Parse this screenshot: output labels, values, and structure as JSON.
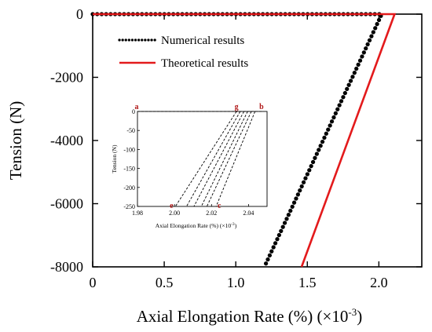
{
  "chart_data": {
    "type": "line",
    "title": "",
    "xlabel": "Axial Elongation Rate (%)",
    "xlabel_unit": "(×10",
    "xlabel_unit_exp": "-3",
    "xlabel_unit_close": ")",
    "ylabel": "Tension (N)",
    "xlim": [
      0,
      2.3
    ],
    "ylim": [
      -8000,
      0
    ],
    "xticks": [
      "0",
      "0.5",
      "1.0",
      "1.5",
      "2.0"
    ],
    "xtick_values": [
      0,
      0.5,
      1.0,
      1.5,
      2.0
    ],
    "yticks": [
      "0",
      "-2000",
      "-4000",
      "-6000",
      "-8000"
    ],
    "ytick_values": [
      0,
      -2000,
      -4000,
      -6000,
      -8000
    ],
    "legend_position": "top-left",
    "series": [
      {
        "name": "Numerical results",
        "style": "dotted",
        "color": "#000000",
        "x": [
          0,
          2.02,
          1.2
        ],
        "y": [
          0,
          0,
          -8000
        ]
      },
      {
        "name": "Theoretical results",
        "style": "solid",
        "color": "#e31a1c",
        "x": [
          0,
          2.11,
          1.46
        ],
        "y": [
          0,
          0,
          -8000
        ]
      }
    ],
    "inset": {
      "xlabel": "Axial Elongation Rate (%)",
      "xlabel_unit": "(×10",
      "xlabel_unit_exp": "-3",
      "xlabel_unit_close": ")",
      "ylabel": "Tension (N)",
      "xlim": [
        1.98,
        2.05
      ],
      "ylim": [
        -250,
        0
      ],
      "xticks": [
        "1.98",
        "2.00",
        "2.02",
        "2.04"
      ],
      "xtick_values": [
        1.98,
        2.0,
        2.02,
        2.04
      ],
      "yticks": [
        "0",
        "-50",
        "-100",
        "-150",
        "-200",
        "-250"
      ],
      "ytick_values": [
        0,
        -50,
        -100,
        -150,
        -200,
        -250
      ],
      "top_line": {
        "x": [
          1.98,
          2.047
        ],
        "y": [
          0,
          0
        ]
      },
      "dashed_lines": [
        {
          "x": [
            2.0335,
            2.0005
          ],
          "y": [
            0,
            -250
          ]
        },
        {
          "x": [
            2.0355,
            2.0065
          ],
          "y": [
            0,
            -250
          ]
        },
        {
          "x": [
            2.0375,
            2.0105
          ],
          "y": [
            0,
            -250
          ]
        },
        {
          "x": [
            2.0395,
            2.0145
          ],
          "y": [
            0,
            -250
          ]
        },
        {
          "x": [
            2.0415,
            2.0175
          ],
          "y": [
            0,
            -250
          ]
        },
        {
          "x": [
            2.0435,
            2.0225
          ],
          "y": [
            0,
            -250
          ]
        }
      ],
      "labels": [
        {
          "text": "a",
          "x": 1.98,
          "y": 0
        },
        {
          "text": "g",
          "x": 2.0335,
          "y": 0
        },
        {
          "text": "b",
          "x": 2.047,
          "y": 0
        },
        {
          "text": "e",
          "x": 2.0005,
          "y": -250
        },
        {
          "text": "c",
          "x": 2.0225,
          "y": -250
        }
      ]
    }
  }
}
